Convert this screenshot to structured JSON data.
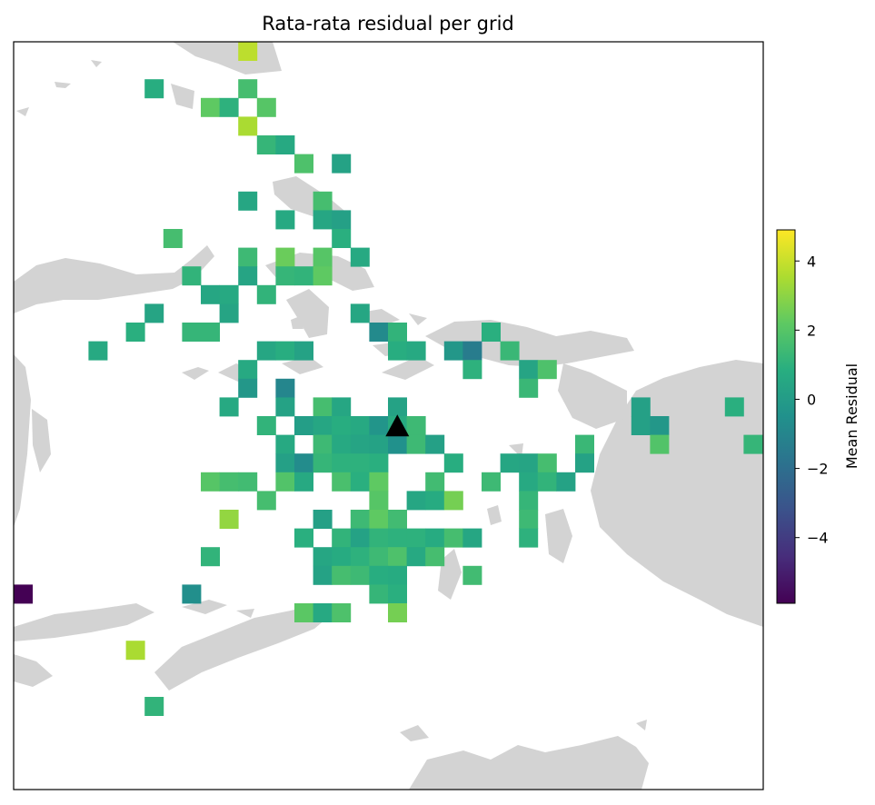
{
  "chart_data": {
    "type": "heatmap",
    "title": "Rata-rata residual per grid",
    "colorbar": {
      "label": "Mean Residual",
      "colormap": "viridis",
      "range": [
        -5.9,
        4.9
      ],
      "ticks": [
        4,
        2,
        0,
        -2,
        -4
      ],
      "tick_labels": [
        "4",
        "2",
        "0",
        "−2",
        "−4"
      ]
    },
    "grid": {
      "cols": 40,
      "rows": 40,
      "cells": [
        [
          12,
          0,
          3.8
        ],
        [
          7,
          2,
          0.8
        ],
        [
          12,
          2,
          1.6
        ],
        [
          10,
          3,
          2.2
        ],
        [
          11,
          3,
          1.0
        ],
        [
          13,
          3,
          2.0
        ],
        [
          12,
          4,
          3.5
        ],
        [
          13,
          5,
          1.2
        ],
        [
          14,
          5,
          0.6
        ],
        [
          15,
          6,
          1.8
        ],
        [
          17,
          6,
          0.3
        ],
        [
          12,
          8,
          0.5
        ],
        [
          16,
          8,
          1.6
        ],
        [
          14,
          9,
          0.6
        ],
        [
          16,
          9,
          0.5
        ],
        [
          17,
          9,
          0.2
        ],
        [
          8,
          10,
          1.6
        ],
        [
          17,
          10,
          0.9
        ],
        [
          12,
          11,
          1.4
        ],
        [
          14,
          11,
          2.4
        ],
        [
          16,
          11,
          2.0
        ],
        [
          18,
          11,
          0.6
        ],
        [
          9,
          12,
          1.1
        ],
        [
          12,
          12,
          0.4
        ],
        [
          14,
          12,
          1.2
        ],
        [
          15,
          12,
          1.1
        ],
        [
          16,
          12,
          2.2
        ],
        [
          10,
          13,
          0.5
        ],
        [
          11,
          13,
          0.6
        ],
        [
          13,
          13,
          1.1
        ],
        [
          7,
          14,
          0.4
        ],
        [
          11,
          14,
          0.4
        ],
        [
          18,
          14,
          0.5
        ],
        [
          6,
          15,
          0.9
        ],
        [
          9,
          15,
          1.2
        ],
        [
          10,
          15,
          1.2
        ],
        [
          19,
          15,
          -0.8
        ],
        [
          20,
          15,
          1.1
        ],
        [
          25,
          15,
          0.9
        ],
        [
          4,
          16,
          0.6
        ],
        [
          13,
          16,
          0.5
        ],
        [
          14,
          16,
          0.8
        ],
        [
          15,
          16,
          0.3
        ],
        [
          20,
          16,
          0.8
        ],
        [
          21,
          16,
          0.6
        ],
        [
          23,
          16,
          -0.2
        ],
        [
          24,
          16,
          -1.4
        ],
        [
          26,
          16,
          1.3
        ],
        [
          12,
          17,
          0.6
        ],
        [
          24,
          17,
          1.0
        ],
        [
          27,
          17,
          0.4
        ],
        [
          28,
          17,
          1.8
        ],
        [
          12,
          18,
          -0.2
        ],
        [
          14,
          18,
          -1.0
        ],
        [
          27,
          18,
          1.3
        ],
        [
          11,
          19,
          0.6
        ],
        [
          14,
          19,
          0.3
        ],
        [
          16,
          19,
          1.6
        ],
        [
          17,
          19,
          0.5
        ],
        [
          20,
          19,
          0.3
        ],
        [
          33,
          19,
          0.2
        ],
        [
          38,
          19,
          0.9
        ],
        [
          13,
          20,
          1.1
        ],
        [
          15,
          20,
          0.1
        ],
        [
          16,
          20,
          0.5
        ],
        [
          17,
          20,
          0.8
        ],
        [
          18,
          20,
          0.6
        ],
        [
          19,
          20,
          -0.3
        ],
        [
          20,
          20,
          0.7
        ],
        [
          21,
          20,
          1.4
        ],
        [
          33,
          20,
          0.2
        ],
        [
          34,
          20,
          -0.2
        ],
        [
          14,
          21,
          0.6
        ],
        [
          16,
          21,
          1.4
        ],
        [
          17,
          21,
          0.6
        ],
        [
          18,
          21,
          0.4
        ],
        [
          19,
          21,
          0.3
        ],
        [
          20,
          21,
          -0.5
        ],
        [
          21,
          21,
          1.4
        ],
        [
          22,
          21,
          0.2
        ],
        [
          30,
          21,
          1.3
        ],
        [
          34,
          21,
          1.9
        ],
        [
          39,
          21,
          1.2
        ],
        [
          14,
          22,
          0.2
        ],
        [
          15,
          22,
          -0.7
        ],
        [
          16,
          22,
          1.2
        ],
        [
          17,
          22,
          1.0
        ],
        [
          18,
          22,
          1.0
        ],
        [
          19,
          22,
          0.9
        ],
        [
          23,
          22,
          0.8
        ],
        [
          26,
          22,
          0.5
        ],
        [
          27,
          22,
          0.4
        ],
        [
          28,
          22,
          1.6
        ],
        [
          30,
          22,
          0.3
        ],
        [
          10,
          23,
          2.0
        ],
        [
          11,
          23,
          1.6
        ],
        [
          12,
          23,
          1.5
        ],
        [
          14,
          23,
          1.9
        ],
        [
          15,
          23,
          0.6
        ],
        [
          17,
          23,
          1.7
        ],
        [
          18,
          23,
          0.9
        ],
        [
          19,
          23,
          2.2
        ],
        [
          22,
          23,
          1.5
        ],
        [
          25,
          23,
          1.4
        ],
        [
          27,
          23,
          0.6
        ],
        [
          28,
          23,
          1.1
        ],
        [
          29,
          23,
          0.3
        ],
        [
          13,
          24,
          1.6
        ],
        [
          19,
          24,
          2.0
        ],
        [
          21,
          24,
          0.5
        ],
        [
          22,
          24,
          0.7
        ],
        [
          23,
          24,
          2.6
        ],
        [
          27,
          24,
          1.2
        ],
        [
          11,
          25,
          3.1
        ],
        [
          16,
          25,
          0.2
        ],
        [
          18,
          25,
          1.4
        ],
        [
          19,
          25,
          2.2
        ],
        [
          20,
          25,
          1.5
        ],
        [
          27,
          25,
          1.4
        ],
        [
          15,
          26,
          0.9
        ],
        [
          17,
          26,
          1.1
        ],
        [
          18,
          26,
          0.3
        ],
        [
          19,
          26,
          1.1
        ],
        [
          20,
          26,
          1.0
        ],
        [
          21,
          26,
          1.0
        ],
        [
          22,
          26,
          0.7
        ],
        [
          23,
          26,
          1.6
        ],
        [
          24,
          26,
          0.5
        ],
        [
          27,
          26,
          1.0
        ],
        [
          10,
          27,
          1.1
        ],
        [
          16,
          27,
          0.5
        ],
        [
          17,
          27,
          0.7
        ],
        [
          18,
          27,
          1.0
        ],
        [
          19,
          27,
          1.4
        ],
        [
          20,
          27,
          1.8
        ],
        [
          21,
          27,
          0.6
        ],
        [
          22,
          27,
          1.6
        ],
        [
          16,
          28,
          0.3
        ],
        [
          17,
          28,
          1.6
        ],
        [
          18,
          28,
          1.4
        ],
        [
          19,
          28,
          0.8
        ],
        [
          20,
          28,
          0.7
        ],
        [
          24,
          28,
          1.5
        ],
        [
          0,
          29,
          -5.9
        ],
        [
          9,
          29,
          -0.6
        ],
        [
          19,
          29,
          1.2
        ],
        [
          20,
          29,
          0.9
        ],
        [
          15,
          30,
          2.1
        ],
        [
          16,
          30,
          0.6
        ],
        [
          17,
          30,
          1.8
        ],
        [
          20,
          30,
          2.6
        ],
        [
          6,
          32,
          3.5
        ],
        [
          7,
          35,
          1.1
        ]
      ]
    },
    "markers": [
      {
        "symbol": "black-triangle",
        "col": 20,
        "row": 20
      }
    ]
  }
}
